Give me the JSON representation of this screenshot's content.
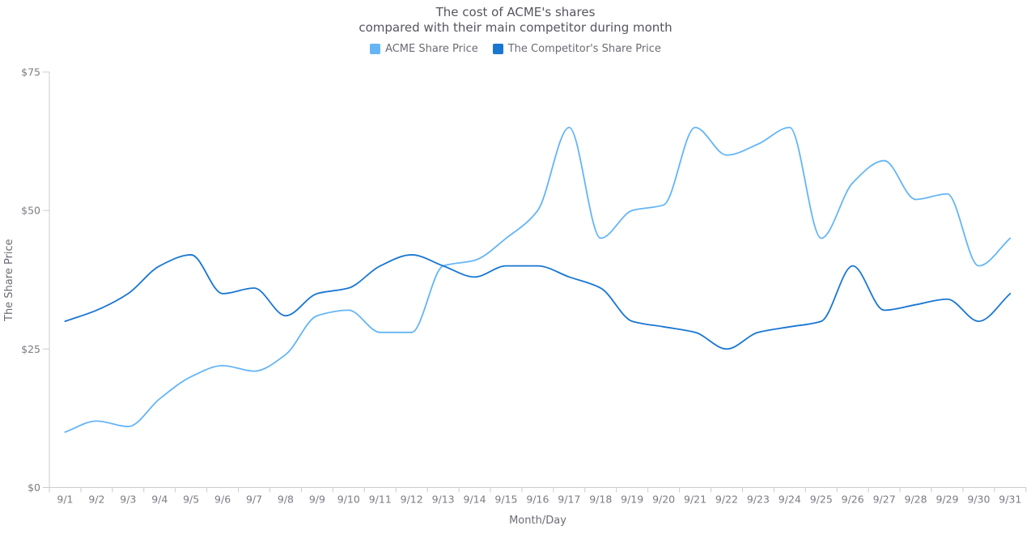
{
  "title": {
    "line1": "The cost of ACME's shares",
    "line2": "compared with their main competitor during month"
  },
  "legend": {
    "items": [
      {
        "label": "ACME Share Price",
        "color": "#64b5f6"
      },
      {
        "label": "The Competitor's Share Price",
        "color": "#1976d2"
      }
    ]
  },
  "axes": {
    "y_title": "The Share Price",
    "x_title": "Month/Day"
  },
  "colors": {
    "axis_line": "#cccccc",
    "tick_text": "#7b7b84",
    "acme": "#64b5f6",
    "competitor": "#1976d2"
  },
  "chart_data": {
    "type": "line",
    "title": "The cost of ACME's shares compared with their main competitor during month",
    "xlabel": "Month/Day",
    "ylabel": "The Share Price",
    "ylim": [
      0,
      75
    ],
    "grid": false,
    "legend_position": "top",
    "y_ticks": [
      {
        "value": 0,
        "label": "$0"
      },
      {
        "value": 25,
        "label": "$25"
      },
      {
        "value": 50,
        "label": "$50"
      },
      {
        "value": 75,
        "label": "$75"
      }
    ],
    "categories": [
      "9/1",
      "9/2",
      "9/3",
      "9/4",
      "9/5",
      "9/6",
      "9/7",
      "9/8",
      "9/9",
      "9/10",
      "9/11",
      "9/12",
      "9/13",
      "9/14",
      "9/15",
      "9/16",
      "9/17",
      "9/18",
      "9/19",
      "9/20",
      "9/21",
      "9/22",
      "9/23",
      "9/24",
      "9/25",
      "9/26",
      "9/27",
      "9/28",
      "9/29",
      "9/30",
      "9/31"
    ],
    "series": [
      {
        "name": "ACME Share Price",
        "color": "#64b5f6",
        "values": [
          10,
          12,
          11,
          16,
          20,
          22,
          21,
          24,
          31,
          32,
          28,
          28,
          40,
          41,
          45,
          50,
          65,
          45,
          50,
          51,
          65,
          60,
          62,
          65,
          45,
          55,
          59,
          52,
          53,
          40,
          45
        ]
      },
      {
        "name": "The Competitor's Share Price",
        "color": "#1976d2",
        "values": [
          30,
          32,
          35,
          40,
          42,
          35,
          36,
          31,
          35,
          36,
          40,
          42,
          40,
          38,
          40,
          40,
          38,
          36,
          30,
          29,
          28,
          25,
          28,
          29,
          30,
          40,
          32,
          33,
          34,
          30,
          35
        ]
      }
    ]
  }
}
